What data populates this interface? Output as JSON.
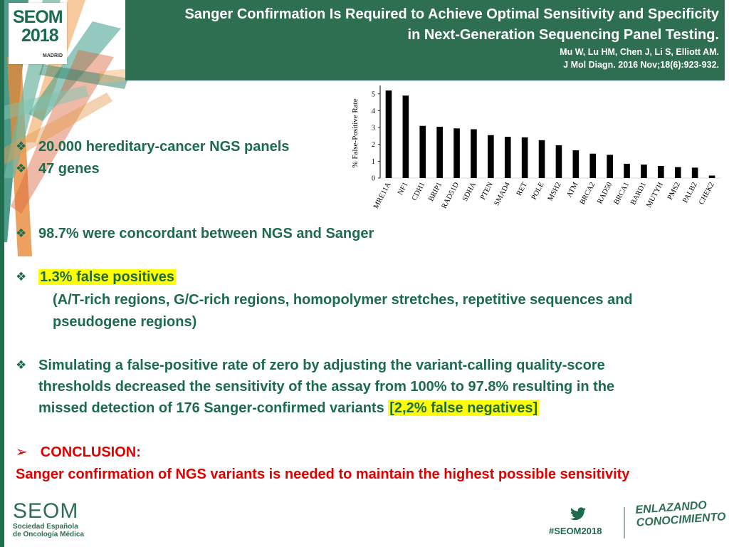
{
  "header": {
    "logo": {
      "brand": "SEOM",
      "year": "2018",
      "city": "MADRID"
    },
    "title_line1": "Sanger Confirmation Is Required to Achieve Optimal Sensitivity and Specificity",
    "title_line2": "in Next-Generation Sequencing Panel Testing.",
    "authors": "Mu W, Lu HM, Chen J, Li S, Elliott AM.",
    "journal": "J Mol Diagn. 2016 Nov;18(6):923-932."
  },
  "bullets": {
    "b1": "20.000 hereditary-cancer NGS panels",
    "b2": "47 genes",
    "b3": "98.7% were concordant between NGS and Sanger",
    "b4": "1.3% false positives",
    "b4_sub_line1": "(A/T-rich regions, G/C-rich regions, homopolymer stretches, repetitive sequences and",
    "b4_sub_line2": "pseudogene regions)",
    "b5_line1": "Simulating a false-positive rate of zero by adjusting the variant-calling quality-score",
    "b5_line2": "thresholds decreased the sensitivity of the assay from 100% to 97.8% resulting in the",
    "b5_line3_pre": "missed detection of 176 Sanger-confirmed variants ",
    "b5_line3_hl": "[2,2% false negatives]"
  },
  "conclusion": {
    "arrow": "➢",
    "heading": "CONCLUSION:",
    "text": "Sanger confirmation of NGS variants is needed to maintain the highest possible sensitivity"
  },
  "footer": {
    "seom": "SEOM",
    "sub_line1": "Sociedad Española",
    "sub_line2": "de Oncología Médica",
    "hashtag": "#SEOM2018",
    "tag_line1": "ENLAZANDO",
    "tag_line2": "CONOCIMIENTO"
  },
  "colors": {
    "green": "#2e6e51",
    "text_green": "#1c6b4c",
    "red": "#e00000",
    "highlight": "#ffff00"
  },
  "chart_data": {
    "type": "bar",
    "ylabel": "% False-Positive Rate",
    "ylim": [
      0,
      5.5
    ],
    "yticks": [
      0,
      1,
      2,
      3,
      4,
      5
    ],
    "categories": [
      "MRE11A",
      "NF1",
      "CDH1",
      "BRIP1",
      "RAD51D",
      "SDHA",
      "PTEN",
      "SMAD4",
      "RET",
      "POLE",
      "MSH2",
      "ATM",
      "BRCA2",
      "RAD50",
      "BRCA1",
      "BARD1",
      "MUTYH",
      "PMS2",
      "PALB2",
      "CHEK2"
    ],
    "values": [
      5.2,
      4.9,
      3.1,
      3.05,
      2.95,
      2.9,
      2.55,
      2.45,
      2.42,
      2.25,
      1.95,
      1.65,
      1.45,
      1.38,
      0.85,
      0.8,
      0.72,
      0.65,
      0.62,
      0.15
    ]
  }
}
